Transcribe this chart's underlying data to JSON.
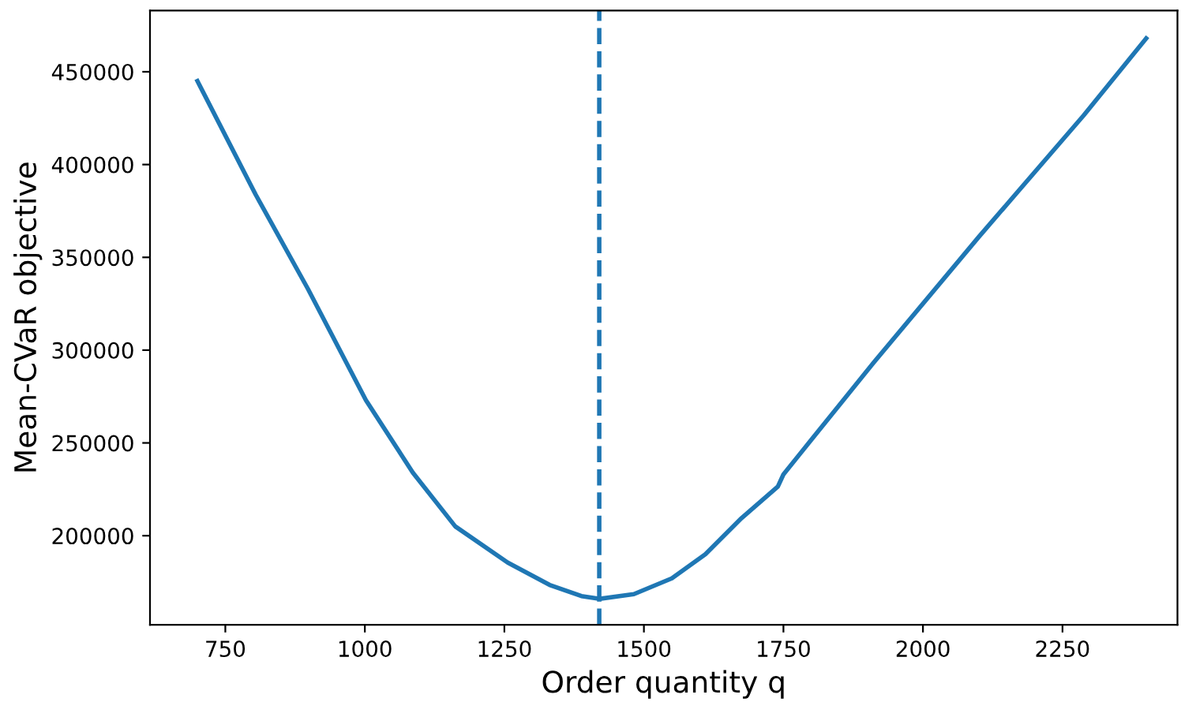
{
  "chart_data": {
    "type": "line",
    "xlabel": "Order quantity q",
    "ylabel": "Mean-CVaR objective",
    "series": [
      {
        "color": "#1f77b4",
        "x": [
          700,
          804,
          898,
          1002,
          1086,
          1162,
          1256,
          1331,
          1388,
          1421,
          1482,
          1550,
          1610,
          1675,
          1740,
          1750,
          1798,
          1911,
          2100,
          2288,
          2400
        ],
        "values": [
          445000,
          384000,
          333000,
          273000,
          234000,
          205000,
          185500,
          173500,
          167500,
          166000,
          168500,
          177000,
          190000,
          209500,
          226500,
          233000,
          251000,
          293000,
          361000,
          426500,
          468000
        ]
      }
    ],
    "xlim": [
      615,
      2456
    ],
    "ylim": [
      152000,
      483000
    ],
    "xticks": [
      750,
      1000,
      1250,
      1500,
      1750,
      2000,
      2250
    ],
    "yticks": [
      200000,
      250000,
      300000,
      350000,
      400000,
      450000
    ],
    "ref_lines": [
      {
        "axis": "x",
        "value": 1420,
        "color": "#1f77b4",
        "line_style": "dashed"
      }
    ],
    "grid": false,
    "legend": false,
    "line_style": "solid",
    "marker": "none"
  }
}
